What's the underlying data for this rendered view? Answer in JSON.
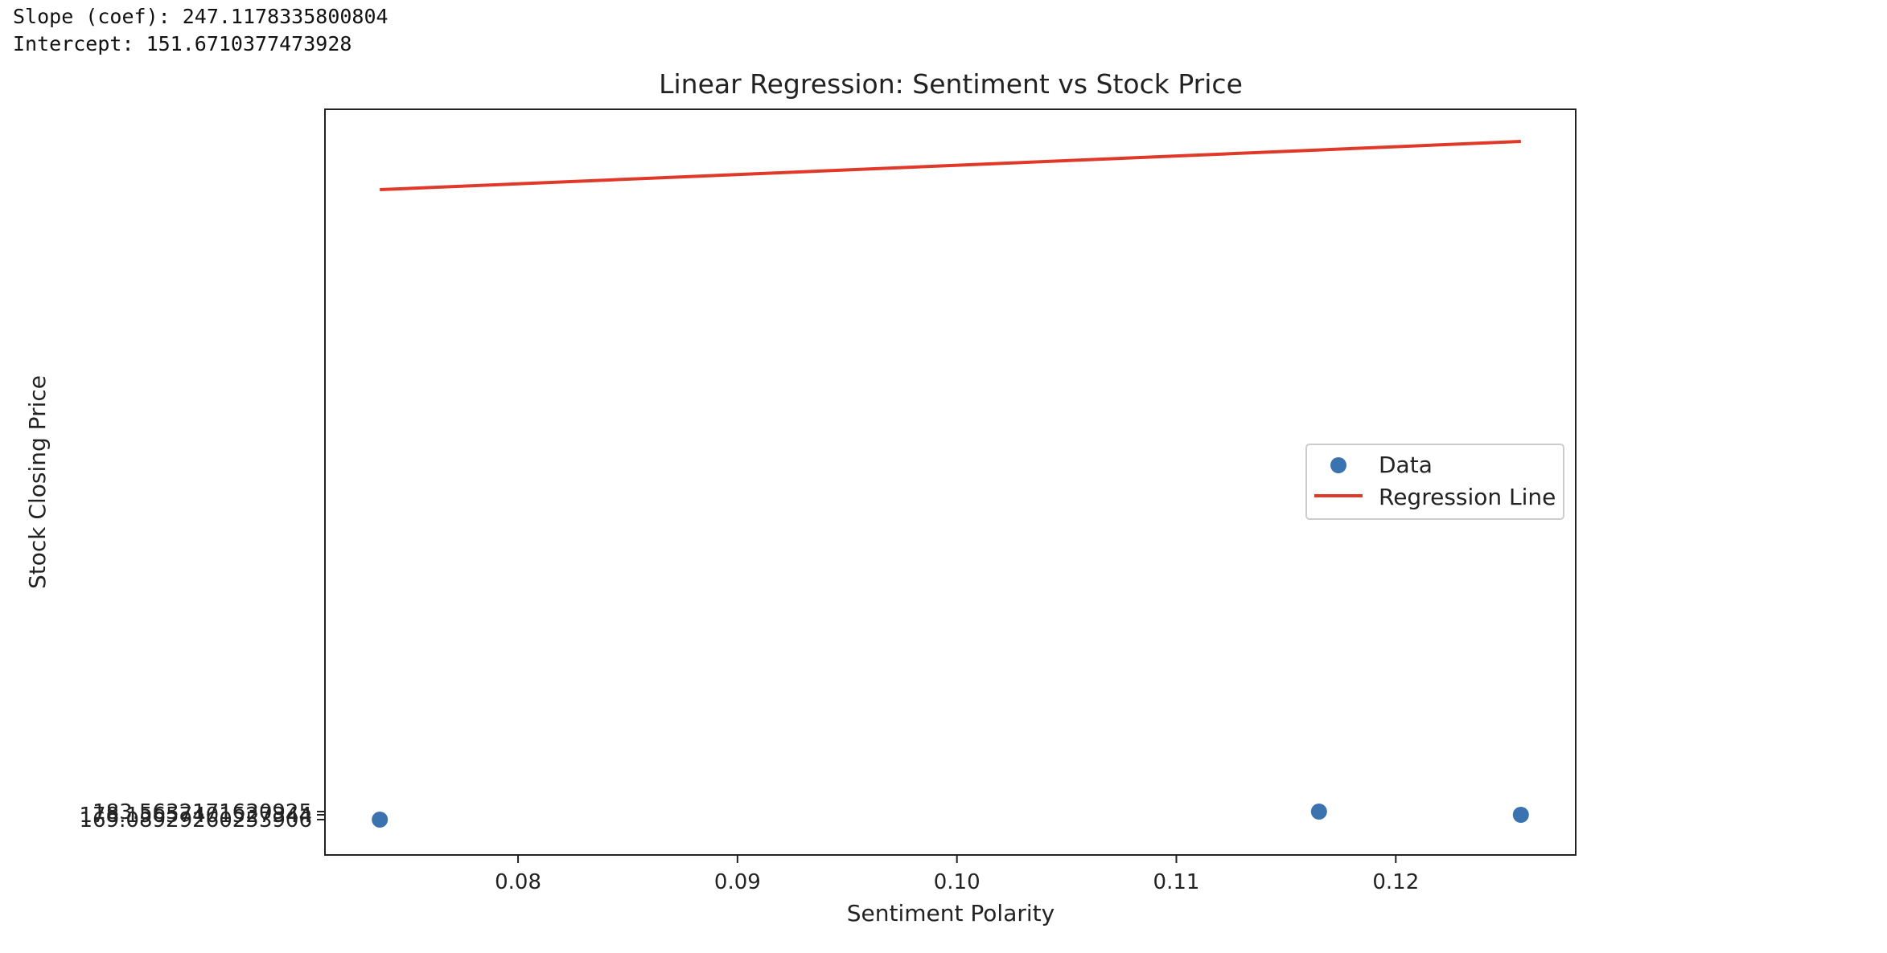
{
  "console": {
    "slope_line": "Slope (coef): 247.1178335800804",
    "intercept_line": "Intercept: 151.6710377473928"
  },
  "chart_data": {
    "type": "scatter",
    "title": "Linear Regression: Sentiment vs Stock Price",
    "xlabel": "Sentiment Polarity",
    "ylabel": "Stock Closing Price",
    "xlim": [
      0.0712,
      0.1282
    ],
    "x_ticks": [
      0.08,
      0.09,
      0.1,
      0.11,
      0.12
    ],
    "x_tick_labels": [
      "0.08",
      "0.09",
      "0.10",
      "0.11",
      "0.12"
    ],
    "grid": false,
    "legend": {
      "position": "center-right",
      "entries": [
        "Data",
        "Regression Line"
      ]
    },
    "series": [
      {
        "name": "Data",
        "kind": "scatter",
        "color": "#3b73b1",
        "points": [
          {
            "x": 0.0737,
            "y_label": "169.08929260253906"
          },
          {
            "x": 0.1165,
            "y_label": "183.5632171630925"
          },
          {
            "x": 0.1257,
            "y_label": "178.15657401527344"
          }
        ]
      },
      {
        "name": "Regression Line",
        "kind": "line",
        "color": "#e0392a",
        "x": [
          0.0737,
          0.1165,
          0.1257
        ]
      }
    ],
    "y_tick_labels_overlapping": [
      "169.08929260253906",
      "178.15657401527344",
      "183.5632171630925"
    ]
  }
}
